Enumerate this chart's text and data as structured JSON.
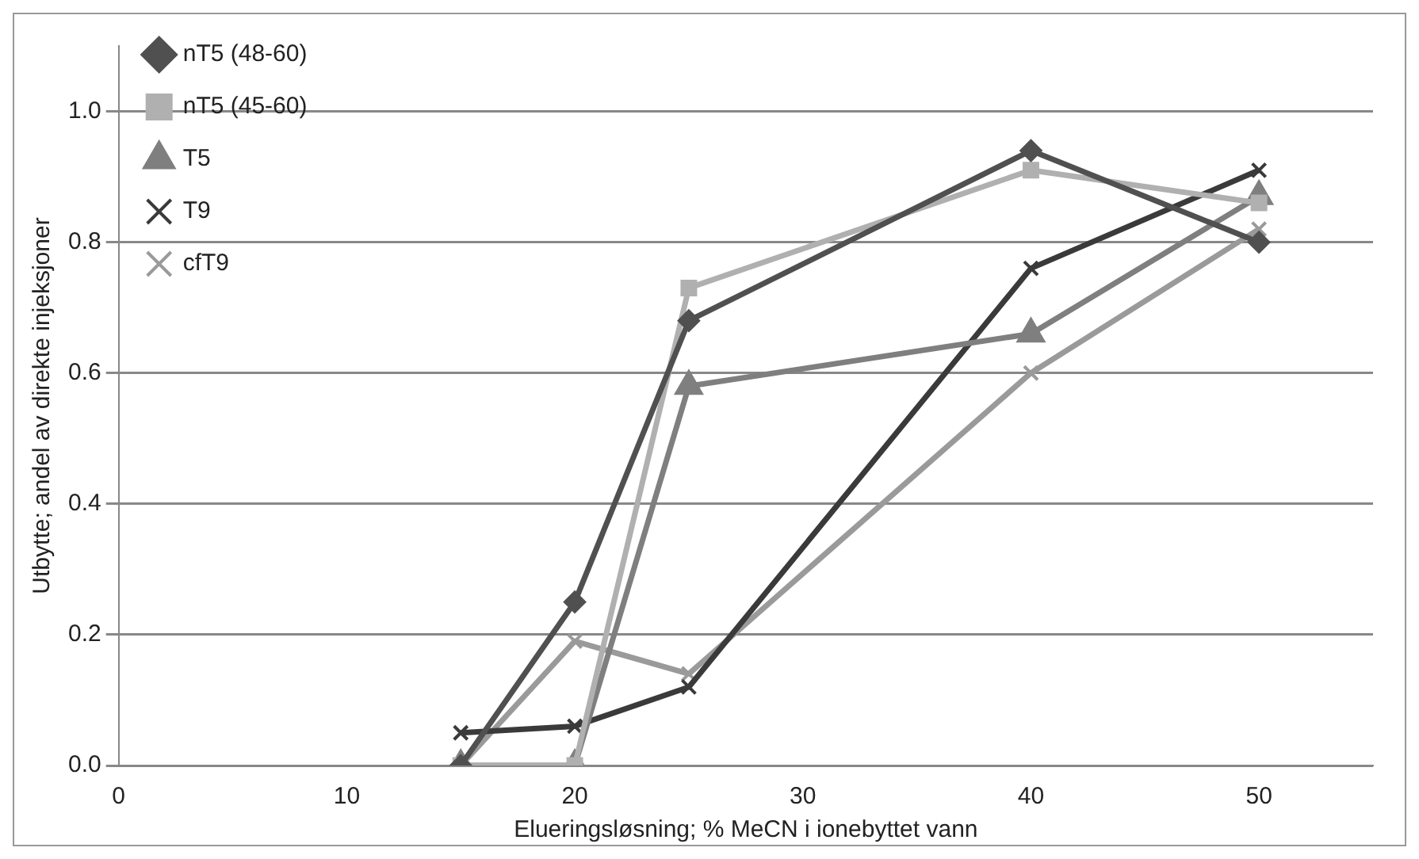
{
  "chart_data": {
    "type": "line",
    "xlabel": "Elueringsløsning; % MeCN i ionebyttet vann",
    "ylabel": "Utbytte; andel av direkte injeksjoner",
    "xlim": [
      0,
      55
    ],
    "xticks": [
      0,
      10,
      20,
      30,
      40,
      50
    ],
    "ylim": [
      0,
      1.1
    ],
    "yticks": [
      {
        "value": 0,
        "label": "0.0"
      },
      {
        "value": 0.2,
        "label": "0.2"
      },
      {
        "value": 0.4,
        "label": "0.4"
      },
      {
        "value": 0.6,
        "label": "0.6"
      },
      {
        "value": 0.8,
        "label": "0.8"
      },
      {
        "value": 1,
        "label": "1.0"
      }
    ],
    "x": [
      15,
      20,
      25,
      40,
      50
    ],
    "grid": "y",
    "legend": "top left",
    "line_style": "solid",
    "series": [
      {
        "name": "nT5 (48-60)",
        "color": "#505050",
        "marker": "diamond",
        "values": [
          0,
          0.25,
          0.68,
          0.94,
          0.8
        ]
      },
      {
        "name": "nT5 (45-60)",
        "color": "#b0b0b0",
        "marker": "square",
        "values": [
          0,
          0,
          0.73,
          0.91,
          0.86
        ]
      },
      {
        "name": "T5",
        "color": "#7f7f7f",
        "marker": "triangle",
        "values": [
          0,
          0,
          0.58,
          0.66,
          0.87
        ]
      },
      {
        "name": "T9",
        "color": "#3a3a3a",
        "marker": "cross",
        "values": [
          0.05,
          0.06,
          0.12,
          0.76,
          0.91
        ]
      },
      {
        "name": "cfT9",
        "color": "#9a9a9a",
        "marker": "cross",
        "values": [
          0,
          0.19,
          0.14,
          0.6,
          0.82
        ]
      }
    ]
  }
}
